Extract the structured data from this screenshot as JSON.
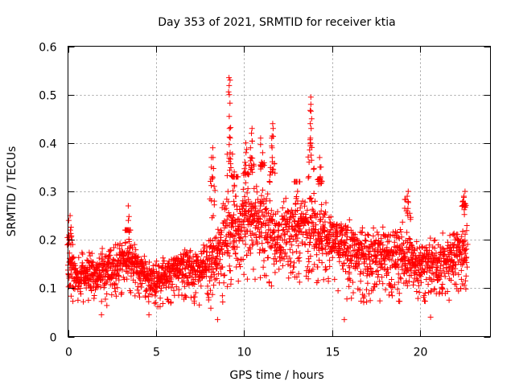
{
  "chart_data": {
    "type": "scatter",
    "title": "Day 353 of 2021, SRMTID for receiver ktia",
    "xlabel": "GPS time / hours",
    "ylabel": "SRMTID / TECUs",
    "xlim": [
      0,
      24
    ],
    "ylim": [
      0,
      0.6
    ],
    "x_ticks": [
      0,
      5,
      10,
      15,
      20
    ],
    "y_ticks": [
      0,
      0.1,
      0.2,
      0.3,
      0.4,
      0.5,
      0.6
    ],
    "x_tick_labels": [
      "0",
      "5",
      "10",
      "15",
      "20"
    ],
    "y_tick_labels": [
      "0",
      "0.1",
      "0.2",
      "0.3",
      "0.4",
      "0.5",
      "0.6"
    ],
    "grid": true,
    "marker": "+",
    "series": [
      {
        "name": "SRMTID",
        "color": "#ff0000",
        "trend": [
          {
            "x": 0.0,
            "low": 0.07,
            "high": 0.19
          },
          {
            "x": 1.0,
            "low": 0.07,
            "high": 0.18
          },
          {
            "x": 2.0,
            "low": 0.06,
            "high": 0.19
          },
          {
            "x": 3.0,
            "low": 0.08,
            "high": 0.22
          },
          {
            "x": 3.5,
            "low": 0.09,
            "high": 0.22
          },
          {
            "x": 4.5,
            "low": 0.06,
            "high": 0.17
          },
          {
            "x": 5.5,
            "low": 0.06,
            "high": 0.17
          },
          {
            "x": 6.5,
            "low": 0.07,
            "high": 0.21
          },
          {
            "x": 7.5,
            "low": 0.06,
            "high": 0.2
          },
          {
            "x": 8.3,
            "low": 0.05,
            "high": 0.24
          },
          {
            "x": 9.0,
            "low": 0.08,
            "high": 0.33
          },
          {
            "x": 10.0,
            "low": 0.12,
            "high": 0.33
          },
          {
            "x": 11.0,
            "low": 0.11,
            "high": 0.35
          },
          {
            "x": 12.0,
            "low": 0.1,
            "high": 0.29
          },
          {
            "x": 13.0,
            "low": 0.11,
            "high": 0.32
          },
          {
            "x": 14.0,
            "low": 0.11,
            "high": 0.33
          },
          {
            "x": 15.0,
            "low": 0.1,
            "high": 0.28
          },
          {
            "x": 16.0,
            "low": 0.07,
            "high": 0.26
          },
          {
            "x": 17.0,
            "low": 0.07,
            "high": 0.25
          },
          {
            "x": 18.0,
            "low": 0.07,
            "high": 0.24
          },
          {
            "x": 19.0,
            "low": 0.07,
            "high": 0.25
          },
          {
            "x": 20.0,
            "low": 0.07,
            "high": 0.22
          },
          {
            "x": 21.0,
            "low": 0.07,
            "high": 0.21
          },
          {
            "x": 22.0,
            "low": 0.07,
            "high": 0.25
          },
          {
            "x": 22.7,
            "low": 0.07,
            "high": 0.27
          }
        ],
        "spikes": [
          {
            "x": 0.1,
            "values": [
              0.25,
              0.24,
              0.22,
              0.21
            ]
          },
          {
            "x": 3.4,
            "values": [
              0.27,
              0.24,
              0.22
            ]
          },
          {
            "x": 8.2,
            "values": [
              0.39,
              0.37,
              0.35,
              0.33
            ]
          },
          {
            "x": 9.2,
            "values": [
              0.535,
              0.53,
              0.5,
              0.455,
              0.43,
              0.41,
              0.38
            ]
          },
          {
            "x": 9.5,
            "values": [
              0.34,
              0.31,
              0.29
            ]
          },
          {
            "x": 10.1,
            "values": [
              0.4,
              0.38,
              0.36,
              0.34
            ]
          },
          {
            "x": 10.4,
            "values": [
              0.43,
              0.42,
              0.39,
              0.37
            ]
          },
          {
            "x": 11.0,
            "values": [
              0.41,
              0.38,
              0.36
            ]
          },
          {
            "x": 11.6,
            "values": [
              0.44,
              0.43,
              0.41,
              0.39,
              0.37
            ]
          },
          {
            "x": 13.0,
            "values": [
              0.3,
              0.28
            ]
          },
          {
            "x": 13.8,
            "values": [
              0.495,
              0.48,
              0.45,
              0.43,
              0.41,
              0.4
            ]
          },
          {
            "x": 14.3,
            "values": [
              0.37,
              0.35,
              0.33
            ]
          },
          {
            "x": 19.3,
            "values": [
              0.3,
              0.29
            ]
          },
          {
            "x": 22.5,
            "values": [
              0.3,
              0.29,
              0.28
            ]
          }
        ],
        "outliers": [
          {
            "x": 15.7,
            "y": 0.035
          },
          {
            "x": 8.5,
            "y": 0.035
          },
          {
            "x": 20.6,
            "y": 0.04
          },
          {
            "x": 4.6,
            "y": 0.045
          },
          {
            "x": 1.9,
            "y": 0.045
          }
        ]
      }
    ]
  }
}
